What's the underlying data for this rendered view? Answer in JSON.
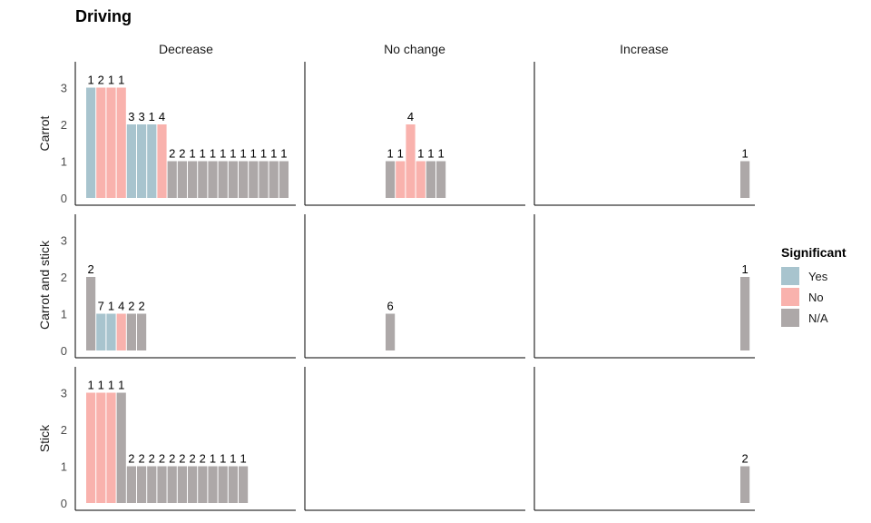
{
  "chart_data": {
    "type": "bar",
    "title": "Driving",
    "col_facets": [
      "Decrease",
      "No change",
      "Increase"
    ],
    "row_facets": [
      "Carrot",
      "Carrot and stick",
      "Stick"
    ],
    "y_ticks": [
      "0",
      "1",
      "2",
      "3"
    ],
    "ylim": [
      0,
      3.6
    ],
    "grid": false,
    "legend": {
      "title": "Significant",
      "placement": "right",
      "entries": [
        {
          "label": "Yes",
          "color": "#a8c4ce"
        },
        {
          "label": "No",
          "color": "#f9b2ad"
        },
        {
          "label": "N/A",
          "color": "#ada8a8"
        }
      ]
    },
    "panels": [
      {
        "row": 0,
        "col": 0,
        "bars": [
          {
            "value": 3,
            "sig": "Yes",
            "label": "1"
          },
          {
            "value": 3,
            "sig": "No",
            "label": "2"
          },
          {
            "value": 3,
            "sig": "No",
            "label": "1"
          },
          {
            "value": 3,
            "sig": "No",
            "label": "1"
          },
          {
            "value": 2,
            "sig": "Yes",
            "label": "3"
          },
          {
            "value": 2,
            "sig": "Yes",
            "label": "3"
          },
          {
            "value": 2,
            "sig": "Yes",
            "label": "1"
          },
          {
            "value": 2,
            "sig": "No",
            "label": "4"
          },
          {
            "value": 1,
            "sig": "N/A",
            "label": "2"
          },
          {
            "value": 1,
            "sig": "N/A",
            "label": "2"
          },
          {
            "value": 1,
            "sig": "N/A",
            "label": "1"
          },
          {
            "value": 1,
            "sig": "N/A",
            "label": "1"
          },
          {
            "value": 1,
            "sig": "N/A",
            "label": "1"
          },
          {
            "value": 1,
            "sig": "N/A",
            "label": "1"
          },
          {
            "value": 1,
            "sig": "N/A",
            "label": "1"
          },
          {
            "value": 1,
            "sig": "N/A",
            "label": "1"
          },
          {
            "value": 1,
            "sig": "N/A",
            "label": "1"
          },
          {
            "value": 1,
            "sig": "N/A",
            "label": "1"
          },
          {
            "value": 1,
            "sig": "N/A",
            "label": "1"
          },
          {
            "value": 1,
            "sig": "N/A",
            "label": "1"
          }
        ]
      },
      {
        "row": 0,
        "col": 1,
        "bars": [
          {
            "value": 1,
            "sig": "N/A",
            "label": "1"
          },
          {
            "value": 1,
            "sig": "No",
            "label": "1"
          },
          {
            "value": 2,
            "sig": "No",
            "label": "4"
          },
          {
            "value": 1,
            "sig": "No",
            "label": "1"
          },
          {
            "value": 1,
            "sig": "N/A",
            "label": "1"
          },
          {
            "value": 1,
            "sig": "N/A",
            "label": "1"
          }
        ]
      },
      {
        "row": 0,
        "col": 2,
        "bars": [
          {
            "value": 1,
            "sig": "N/A",
            "label": "1"
          }
        ]
      },
      {
        "row": 1,
        "col": 0,
        "bars": [
          {
            "value": 2,
            "sig": "N/A",
            "label": "2"
          },
          {
            "value": 1,
            "sig": "Yes",
            "label": "7"
          },
          {
            "value": 1,
            "sig": "Yes",
            "label": "1"
          },
          {
            "value": 1,
            "sig": "No",
            "label": "4"
          },
          {
            "value": 1,
            "sig": "N/A",
            "label": "2"
          },
          {
            "value": 1,
            "sig": "N/A",
            "label": "2"
          }
        ]
      },
      {
        "row": 1,
        "col": 1,
        "bars": [
          {
            "value": 1,
            "sig": "N/A",
            "label": "6"
          }
        ]
      },
      {
        "row": 1,
        "col": 2,
        "bars": [
          {
            "value": 2,
            "sig": "N/A",
            "label": "1"
          }
        ]
      },
      {
        "row": 2,
        "col": 0,
        "bars": [
          {
            "value": 3,
            "sig": "No",
            "label": "1"
          },
          {
            "value": 3,
            "sig": "No",
            "label": "1"
          },
          {
            "value": 3,
            "sig": "No",
            "label": "1"
          },
          {
            "value": 3,
            "sig": "N/A",
            "label": "1"
          },
          {
            "value": 1,
            "sig": "N/A",
            "label": "2"
          },
          {
            "value": 1,
            "sig": "N/A",
            "label": "2"
          },
          {
            "value": 1,
            "sig": "N/A",
            "label": "2"
          },
          {
            "value": 1,
            "sig": "N/A",
            "label": "2"
          },
          {
            "value": 1,
            "sig": "N/A",
            "label": "2"
          },
          {
            "value": 1,
            "sig": "N/A",
            "label": "2"
          },
          {
            "value": 1,
            "sig": "N/A",
            "label": "2"
          },
          {
            "value": 1,
            "sig": "N/A",
            "label": "2"
          },
          {
            "value": 1,
            "sig": "N/A",
            "label": "1"
          },
          {
            "value": 1,
            "sig": "N/A",
            "label": "1"
          },
          {
            "value": 1,
            "sig": "N/A",
            "label": "1"
          },
          {
            "value": 1,
            "sig": "N/A",
            "label": "1"
          }
        ]
      },
      {
        "row": 2,
        "col": 1,
        "bars": []
      },
      {
        "row": 2,
        "col": 2,
        "bars": [
          {
            "value": 1,
            "sig": "N/A",
            "label": "2"
          }
        ]
      }
    ]
  }
}
